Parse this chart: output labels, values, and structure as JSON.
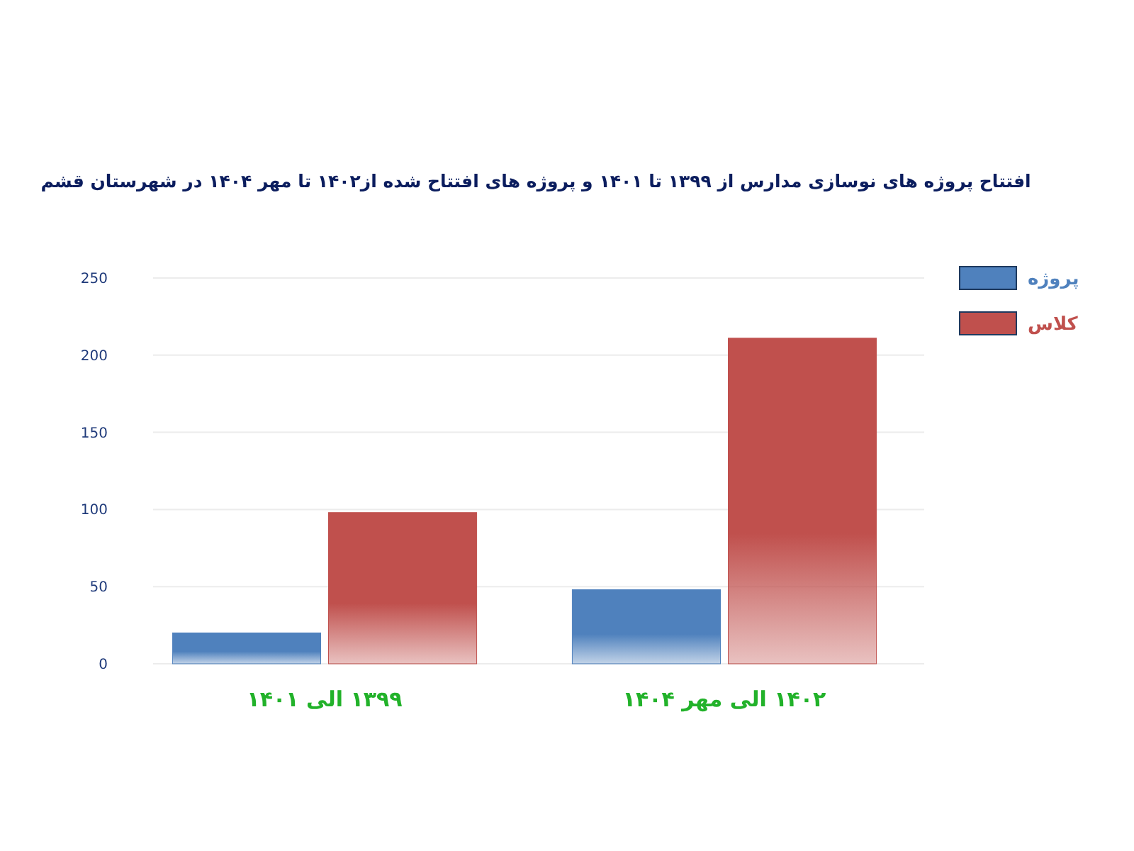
{
  "chart_data": {
    "type": "bar",
    "title": "افتتاح پروژه های نوسازی مدارس از ۱۳۹۹ تا ۱۴۰۱   و  پروژه های افتتاح شده از۱۴۰۲ تا مهر ۱۴۰۴ در شهرستان قشم",
    "categories": [
      "۱۳۹۹ الی ۱۴۰۱",
      "۱۴۰۲ الی مهر ۱۴۰۴"
    ],
    "series": [
      {
        "name": "پروژه",
        "color": "#4f81bd",
        "values": [
          20,
          48
        ]
      },
      {
        "name": "کلاس",
        "color": "#c0504d",
        "values": [
          98,
          211
        ]
      }
    ],
    "ylim": [
      0,
      250
    ],
    "yticks": [
      0,
      50,
      100,
      150,
      200,
      250
    ],
    "grid": "y",
    "legend": "top right"
  }
}
